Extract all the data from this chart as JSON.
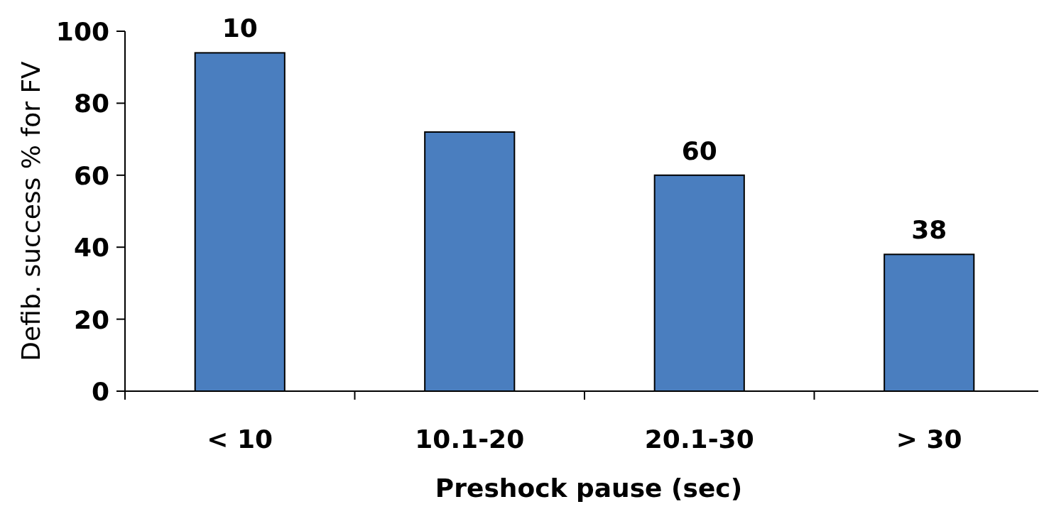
{
  "chart_data": {
    "type": "bar",
    "xlabel": "Preshock pause (sec)",
    "ylabel": "Defib. success % for FV",
    "categories": [
      "< 10",
      "10.1-20",
      "20.1-30",
      "> 30"
    ],
    "values": [
      94,
      72,
      60,
      38
    ],
    "color": "#4a7ebf",
    "value_labels": [
      null,
      null,
      "60",
      "38"
    ],
    "annotations": [
      {
        "text": "10",
        "x": "< 10",
        "y": 94
      }
    ],
    "ylim": [
      0,
      100
    ],
    "yticks": [
      0,
      20,
      40,
      60,
      80,
      100
    ],
    "grid": false
  }
}
